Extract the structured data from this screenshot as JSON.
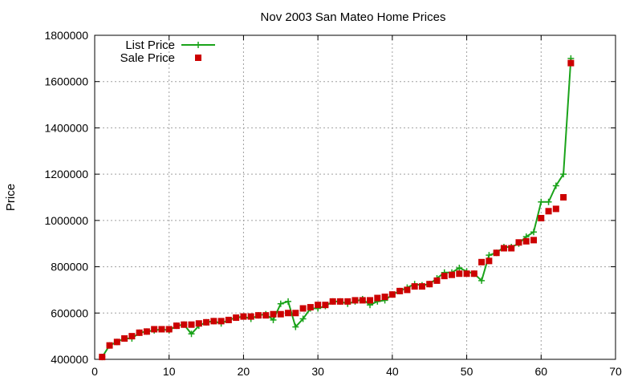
{
  "chart_data": {
    "type": "line",
    "title": "Nov 2003 San Mateo Home Prices",
    "xlabel": "",
    "ylabel": "Price",
    "xlim": [
      0,
      70
    ],
    "ylim": [
      400000,
      1800000
    ],
    "xticks": [
      0,
      10,
      20,
      30,
      40,
      50,
      60,
      70
    ],
    "yticks": [
      400000,
      600000,
      800000,
      1000000,
      1200000,
      1400000,
      1600000,
      1800000
    ],
    "grid": true,
    "legend_position": "top-left",
    "series": [
      {
        "name": "List Price",
        "style": "line-plus",
        "color": "#1aa31a",
        "x": [
          1,
          2,
          3,
          4,
          5,
          6,
          7,
          8,
          9,
          10,
          11,
          12,
          13,
          14,
          15,
          16,
          17,
          18,
          19,
          20,
          21,
          22,
          23,
          24,
          25,
          26,
          27,
          28,
          29,
          30,
          31,
          32,
          33,
          34,
          35,
          36,
          37,
          38,
          39,
          40,
          41,
          42,
          43,
          44,
          45,
          46,
          47,
          48,
          49,
          50,
          51,
          52,
          53,
          54,
          55,
          56,
          57,
          58,
          59,
          60,
          61,
          62,
          63,
          64
        ],
        "y": [
          410000,
          460000,
          475000,
          490000,
          490000,
          515000,
          520000,
          525000,
          530000,
          525000,
          545000,
          550000,
          510000,
          545000,
          560000,
          565000,
          555000,
          570000,
          580000,
          585000,
          575000,
          590000,
          595000,
          570000,
          640000,
          650000,
          540000,
          575000,
          620000,
          620000,
          630000,
          650000,
          650000,
          640000,
          650000,
          660000,
          635000,
          650000,
          655000,
          680000,
          695000,
          710000,
          725000,
          720000,
          725000,
          750000,
          775000,
          775000,
          795000,
          780000,
          770000,
          740000,
          850000,
          860000,
          885000,
          885000,
          900000,
          930000,
          950000,
          1080000,
          1080000,
          1150000,
          1200000,
          1700000
        ]
      },
      {
        "name": "Sale Price",
        "style": "square-points",
        "color": "#cc0000",
        "x": [
          1,
          2,
          3,
          4,
          5,
          6,
          7,
          8,
          9,
          10,
          11,
          12,
          13,
          14,
          15,
          16,
          17,
          18,
          19,
          20,
          21,
          22,
          23,
          24,
          25,
          26,
          27,
          28,
          29,
          30,
          31,
          32,
          33,
          34,
          35,
          36,
          37,
          38,
          39,
          40,
          41,
          42,
          43,
          44,
          45,
          46,
          47,
          48,
          49,
          50,
          51,
          52,
          53,
          54,
          55,
          56,
          57,
          58,
          59,
          60,
          61,
          62,
          63,
          64
        ],
        "y": [
          410000,
          460000,
          475000,
          490000,
          500000,
          515000,
          520000,
          530000,
          530000,
          530000,
          545000,
          550000,
          550000,
          555000,
          560000,
          565000,
          565000,
          570000,
          580000,
          585000,
          585000,
          590000,
          590000,
          595000,
          595000,
          600000,
          600000,
          620000,
          625000,
          635000,
          635000,
          650000,
          650000,
          650000,
          655000,
          655000,
          655000,
          665000,
          670000,
          680000,
          695000,
          700000,
          715000,
          715000,
          725000,
          740000,
          760000,
          765000,
          770000,
          770000,
          770000,
          820000,
          825000,
          860000,
          880000,
          880000,
          905000,
          910000,
          915000,
          1010000,
          1040000,
          1050000,
          1100000,
          1680000
        ]
      }
    ]
  }
}
